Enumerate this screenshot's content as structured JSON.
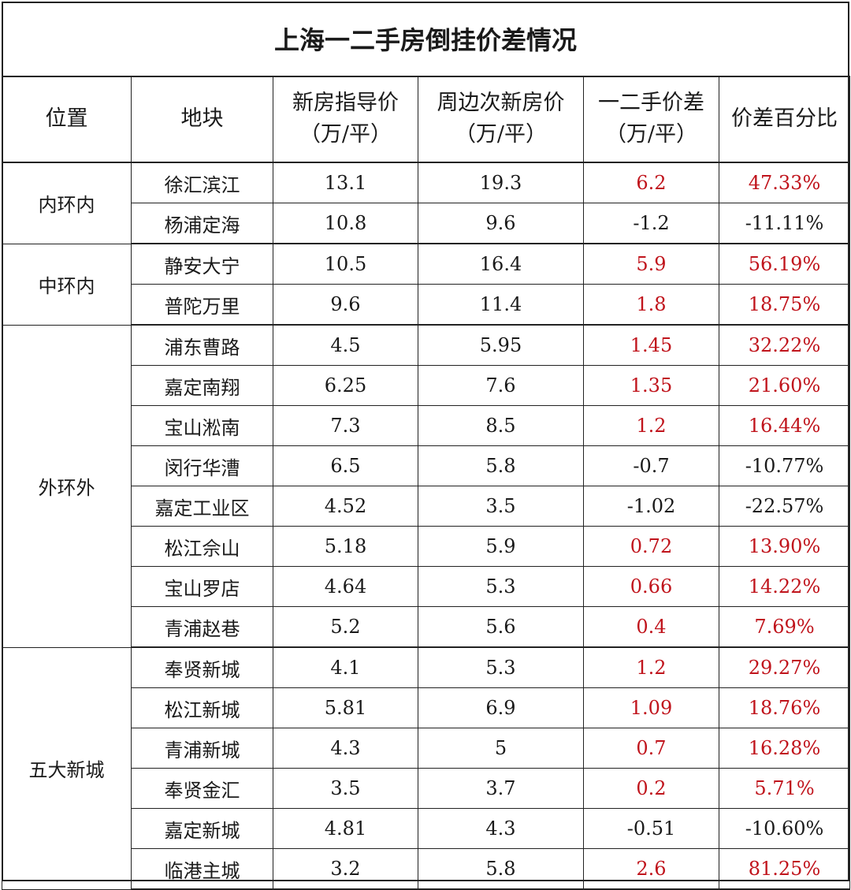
{
  "title": "上海一二手房倒挂价差情况",
  "headers": {
    "location": "位置",
    "plot": "地块",
    "new_price_1": "新房指导价",
    "new_price_2": "（万/平）",
    "nearby_price_1": "周边次新房价",
    "nearby_price_2": "（万/平）",
    "diff_1": "一二手价差",
    "diff_2": "（万/平）",
    "pct": "价差百分比"
  },
  "accent_colors": {
    "positive": "#c0141c",
    "negative": "#1a1a1a"
  },
  "groups": [
    {
      "location": "内环内",
      "rows": [
        {
          "plot": "徐汇滨江",
          "new": "13.1",
          "nearby": "19.3",
          "diff": "6.2",
          "pct": "47.33%",
          "positive": true
        },
        {
          "plot": "杨浦定海",
          "new": "10.8",
          "nearby": "9.6",
          "diff": "-1.2",
          "pct": "-11.11%",
          "positive": false
        }
      ]
    },
    {
      "location": "中环内",
      "rows": [
        {
          "plot": "静安大宁",
          "new": "10.5",
          "nearby": "16.4",
          "diff": "5.9",
          "pct": "56.19%",
          "positive": true
        },
        {
          "plot": "普陀万里",
          "new": "9.6",
          "nearby": "11.4",
          "diff": "1.8",
          "pct": "18.75%",
          "positive": true
        }
      ]
    },
    {
      "location": "外环外",
      "rows": [
        {
          "plot": "浦东曹路",
          "new": "4.5",
          "nearby": "5.95",
          "diff": "1.45",
          "pct": "32.22%",
          "positive": true
        },
        {
          "plot": "嘉定南翔",
          "new": "6.25",
          "nearby": "7.6",
          "diff": "1.35",
          "pct": "21.60%",
          "positive": true
        },
        {
          "plot": "宝山淞南",
          "new": "7.3",
          "nearby": "8.5",
          "diff": "1.2",
          "pct": "16.44%",
          "positive": true
        },
        {
          "plot": "闵行华漕",
          "new": "6.5",
          "nearby": "5.8",
          "diff": "-0.7",
          "pct": "-10.77%",
          "positive": false
        },
        {
          "plot": "嘉定工业区",
          "new": "4.52",
          "nearby": "3.5",
          "diff": "-1.02",
          "pct": "-22.57%",
          "positive": false
        },
        {
          "plot": "松江佘山",
          "new": "5.18",
          "nearby": "5.9",
          "diff": "0.72",
          "pct": "13.90%",
          "positive": true
        },
        {
          "plot": "宝山罗店",
          "new": "4.64",
          "nearby": "5.3",
          "diff": "0.66",
          "pct": "14.22%",
          "positive": true
        },
        {
          "plot": "青浦赵巷",
          "new": "5.2",
          "nearby": "5.6",
          "diff": "0.4",
          "pct": "7.69%",
          "positive": true
        }
      ]
    },
    {
      "location": "五大新城",
      "rows": [
        {
          "plot": "奉贤新城",
          "new": "4.1",
          "nearby": "5.3",
          "diff": "1.2",
          "pct": "29.27%",
          "positive": true
        },
        {
          "plot": "松江新城",
          "new": "5.81",
          "nearby": "6.9",
          "diff": "1.09",
          "pct": "18.76%",
          "positive": true
        },
        {
          "plot": "青浦新城",
          "new": "4.3",
          "nearby": "5",
          "diff": "0.7",
          "pct": "16.28%",
          "positive": true
        },
        {
          "plot": "奉贤金汇",
          "new": "3.5",
          "nearby": "3.7",
          "diff": "0.2",
          "pct": "5.71%",
          "positive": true
        },
        {
          "plot": "嘉定新城",
          "new": "4.81",
          "nearby": "4.3",
          "diff": "-0.51",
          "pct": "-10.60%",
          "positive": false
        },
        {
          "plot": "临港主城",
          "new": "3.2",
          "nearby": "5.8",
          "diff": "2.6",
          "pct": "81.25%",
          "positive": true
        }
      ]
    }
  ]
}
